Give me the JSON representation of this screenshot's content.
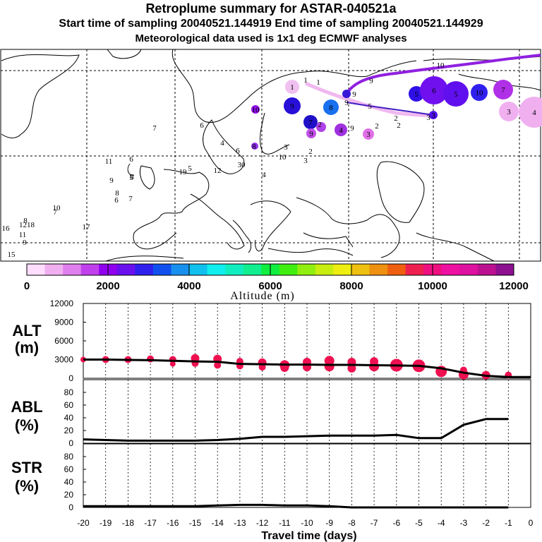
{
  "header": {
    "title": "Retroplume summary for ASTAR-040521a",
    "sampling": "Start time of sampling 20040521.144919     End time of sampling 20040521.144929",
    "met": "Meteorological data used is 1x1 deg ECMWF analyses"
  },
  "colorbar": {
    "label": "Altitude (m)",
    "ticks": [
      "0",
      "2000",
      "4000",
      "6000",
      "8000",
      "10000",
      "12000"
    ],
    "colors": [
      "#ffddff",
      "#f0b0f0",
      "#e080ee",
      "#c040ee",
      "#9000ee",
      "#6a10ee",
      "#3020ee",
      "#1050ee",
      "#1890ee",
      "#10c0ee",
      "#10eeee",
      "#10eec0",
      "#10ee90",
      "#10ee40",
      "#40ee10",
      "#90ee10",
      "#c8ee10",
      "#eeee10",
      "#eec010",
      "#ee9010",
      "#ee6010",
      "#ee2050",
      "#ee1080",
      "#ee10a0",
      "#dd10a0",
      "#bb1090",
      "#8c1090"
    ]
  },
  "map": {
    "labels": [
      {
        "t": "1",
        "x": 433,
        "y": 113
      },
      {
        "t": "1",
        "x": 451,
        "y": 116
      },
      {
        "t": "1",
        "x": 414,
        "y": 123
      },
      {
        "t": "9",
        "x": 526,
        "y": 114
      },
      {
        "t": "9",
        "x": 502,
        "y": 133
      },
      {
        "t": "9",
        "x": 491,
        "y": 145
      },
      {
        "t": "5",
        "x": 524,
        "y": 150
      },
      {
        "t": "2",
        "x": 561,
        "y": 167
      },
      {
        "t": "2",
        "x": 534,
        "y": 178
      },
      {
        "t": "2",
        "x": 565,
        "y": 177
      },
      {
        "t": "3",
        "x": 522,
        "y": 190
      },
      {
        "t": "3",
        "x": 607,
        "y": 166
      },
      {
        "t": "3",
        "x": 614,
        "y": 163
      },
      {
        "t": "9",
        "x": 414,
        "y": 150
      },
      {
        "t": "8",
        "x": 469,
        "y": 152
      },
      {
        "t": "10",
        "x": 362,
        "y": 155
      },
      {
        "t": "7",
        "x": 440,
        "y": 173
      },
      {
        "t": "2",
        "x": 453,
        "y": 176
      },
      {
        "t": "4",
        "x": 483,
        "y": 184
      },
      {
        "t": "9",
        "x": 441,
        "y": 189
      },
      {
        "t": "9",
        "x": 499,
        "y": 181
      },
      {
        "t": "7",
        "x": 219,
        "y": 181
      },
      {
        "t": "6",
        "x": 286,
        "y": 177
      },
      {
        "t": "4",
        "x": 315,
        "y": 202
      },
      {
        "t": "6",
        "x": 337,
        "y": 213
      },
      {
        "t": "8",
        "x": 360,
        "y": 207
      },
      {
        "t": "3",
        "x": 405,
        "y": 208
      },
      {
        "t": "2",
        "x": 440,
        "y": 214
      },
      {
        "t": "10",
        "x": 400,
        "y": 222
      },
      {
        "t": "3",
        "x": 433,
        "y": 227
      },
      {
        "t": "11",
        "x": 154,
        "y": 228
      },
      {
        "t": "6",
        "x": 186,
        "y": 225
      },
      {
        "t": "30",
        "x": 342,
        "y": 233
      },
      {
        "t": "8",
        "x": 187,
        "y": 250
      },
      {
        "t": "5",
        "x": 269,
        "y": 238
      },
      {
        "t": "19",
        "x": 259,
        "y": 243
      },
      {
        "t": "12",
        "x": 308,
        "y": 241
      },
      {
        "t": "4",
        "x": 374,
        "y": 247
      },
      {
        "t": "9",
        "x": 158,
        "y": 255
      },
      {
        "t": "5",
        "x": 186,
        "y": 251
      },
      {
        "t": "8",
        "x": 166,
        "y": 273
      },
      {
        "t": "6",
        "x": 165,
        "y": 283
      },
      {
        "t": "7",
        "x": 185,
        "y": 281
      },
      {
        "t": "10",
        "x": 80,
        "y": 294
      },
      {
        "t": "7",
        "x": 78,
        "y": 300
      },
      {
        "t": "8",
        "x": 36,
        "y": 312
      },
      {
        "t": "1218",
        "x": 38,
        "y": 318
      },
      {
        "t": "16",
        "x": 8,
        "y": 323
      },
      {
        "t": "17",
        "x": 122,
        "y": 321
      },
      {
        "t": "11",
        "x": 32,
        "y": 332
      },
      {
        "t": "9",
        "x": 35,
        "y": 343
      },
      {
        "t": "15",
        "x": 16,
        "y": 360
      },
      {
        "t": "10",
        "x": 624,
        "y": 92
      },
      {
        "t": "4",
        "x": 757,
        "y": 159
      },
      {
        "t": "3",
        "x": 721,
        "y": 158
      },
      {
        "t": "7",
        "x": 713,
        "y": 127
      },
      {
        "t": "10",
        "x": 679,
        "y": 131
      },
      {
        "t": "6",
        "x": 615,
        "y": 128
      },
      {
        "t": "5",
        "x": 646,
        "y": 133
      },
      {
        "t": "5",
        "x": 590,
        "y": 133
      }
    ],
    "blobs": [
      {
        "x": 414,
        "y": 123,
        "r": 10,
        "c": "#f0c0f0"
      },
      {
        "x": 491,
        "y": 133,
        "r": 6,
        "c": "#3818d8"
      },
      {
        "x": 414,
        "y": 150,
        "r": 12,
        "c": "#2810d8"
      },
      {
        "x": 469,
        "y": 152,
        "r": 11,
        "c": "#1870ee"
      },
      {
        "x": 362,
        "y": 155,
        "r": 6,
        "c": "#9010ee"
      },
      {
        "x": 440,
        "y": 173,
        "r": 10,
        "c": "#2010c8"
      },
      {
        "x": 483,
        "y": 184,
        "r": 9,
        "c": "#a030e0"
      },
      {
        "x": 441,
        "y": 189,
        "r": 7,
        "c": "#c050e8"
      },
      {
        "x": 522,
        "y": 190,
        "r": 8,
        "c": "#e070e8"
      },
      {
        "x": 455,
        "y": 180,
        "r": 7,
        "c": "#b040ea"
      },
      {
        "x": 361,
        "y": 207,
        "r": 5,
        "c": "#9030ee"
      },
      {
        "x": 590,
        "y": 133,
        "r": 11,
        "c": "#3010e8"
      },
      {
        "x": 615,
        "y": 128,
        "r": 20,
        "c": "#7010ee"
      },
      {
        "x": 646,
        "y": 133,
        "r": 18,
        "c": "#6010ee"
      },
      {
        "x": 679,
        "y": 131,
        "r": 12,
        "c": "#3020ee"
      },
      {
        "x": 713,
        "y": 127,
        "r": 14,
        "c": "#b030e8"
      },
      {
        "x": 721,
        "y": 158,
        "r": 14,
        "c": "#f0b0f0"
      },
      {
        "x": 757,
        "y": 159,
        "r": 22,
        "c": "#f0b0f0"
      },
      {
        "x": 614,
        "y": 163,
        "r": 6,
        "c": "#5010ee"
      }
    ]
  },
  "panels": {
    "alt": {
      "label1": "ALT",
      "label2": "(m)",
      "ticks": [
        "0",
        "3000",
        "6000",
        "9000",
        "12000"
      ]
    },
    "abl": {
      "label1": "ABL",
      "label2": "(%)",
      "ticks": [
        "0",
        "20",
        "40",
        "60",
        "80"
      ]
    },
    "str": {
      "label1": "STR",
      "label2": "(%)",
      "ticks": [
        "0",
        "20",
        "40",
        "60",
        "80"
      ]
    },
    "xlabel": "Travel time (days)"
  },
  "chart_data": [
    {
      "type": "line",
      "title": "ALT",
      "ylabel": "ALT (m)",
      "xlabel": "Travel time (days)",
      "ylim": [
        0,
        12000
      ],
      "xlim": [
        -20,
        0
      ],
      "xticks": [
        -20,
        -19,
        -18,
        -17,
        -16,
        -15,
        -14,
        -13,
        -12,
        -11,
        -10,
        -9,
        -8,
        -7,
        -6,
        -5,
        -4,
        -3,
        -2,
        -1,
        0
      ],
      "line": {
        "x": [
          -20,
          -19,
          -18,
          -17,
          -16,
          -15,
          -14,
          -13,
          -12,
          -11,
          -10,
          -9,
          -8,
          -7,
          -6,
          -5,
          -4,
          -3,
          -2,
          -1,
          0
        ],
        "y": [
          3000,
          3000,
          2950,
          2900,
          2800,
          2700,
          2650,
          2300,
          2250,
          2200,
          2200,
          2150,
          2150,
          2100,
          2050,
          2000,
          1600,
          900,
          400,
          200,
          200
        ]
      },
      "points": [
        {
          "x": -20,
          "y": 3000,
          "s": 4
        },
        {
          "x": -19,
          "y": 3000,
          "s": 5
        },
        {
          "x": -18,
          "y": 3000,
          "s": 5
        },
        {
          "x": -17,
          "y": 3100,
          "s": 5
        },
        {
          "x": -16,
          "y": 3000,
          "s": 5
        },
        {
          "x": -16,
          "y": 2300,
          "s": 4
        },
        {
          "x": -15,
          "y": 3200,
          "s": 6
        },
        {
          "x": -15,
          "y": 2400,
          "s": 5
        },
        {
          "x": -14,
          "y": 3100,
          "s": 6
        },
        {
          "x": -14,
          "y": 2100,
          "s": 5
        },
        {
          "x": -13,
          "y": 2700,
          "s": 5
        },
        {
          "x": -13,
          "y": 2000,
          "s": 5
        },
        {
          "x": -12,
          "y": 2500,
          "s": 6
        },
        {
          "x": -12,
          "y": 1800,
          "s": 5
        },
        {
          "x": -11,
          "y": 2100,
          "s": 7
        },
        {
          "x": -11,
          "y": 1700,
          "s": 6
        },
        {
          "x": -10,
          "y": 2600,
          "s": 6
        },
        {
          "x": -10,
          "y": 1800,
          "s": 6
        },
        {
          "x": -9,
          "y": 2800,
          "s": 7
        },
        {
          "x": -9,
          "y": 1900,
          "s": 7
        },
        {
          "x": -8,
          "y": 2600,
          "s": 6
        },
        {
          "x": -8,
          "y": 1600,
          "s": 6
        },
        {
          "x": -7,
          "y": 2700,
          "s": 6
        },
        {
          "x": -7,
          "y": 1900,
          "s": 7
        },
        {
          "x": -6,
          "y": 2100,
          "s": 9
        },
        {
          "x": -5,
          "y": 2000,
          "s": 9
        },
        {
          "x": -4,
          "y": 1100,
          "s": 8
        },
        {
          "x": -3,
          "y": 600,
          "s": 7
        },
        {
          "x": -3,
          "y": 1300,
          "s": 5
        },
        {
          "x": -2,
          "y": 500,
          "s": 6
        },
        {
          "x": -1,
          "y": 500,
          "s": 5
        }
      ]
    },
    {
      "type": "line",
      "title": "ABL",
      "ylabel": "ABL (%)",
      "ylim": [
        0,
        100
      ],
      "xlim": [
        -20,
        0
      ],
      "x": [
        -20,
        -19,
        -18,
        -17,
        -16,
        -15,
        -14,
        -13,
        -12,
        -11,
        -10,
        -9,
        -8,
        -7,
        -6,
        -5,
        -4,
        -3,
        -2,
        -1
      ],
      "values": [
        6,
        5,
        4,
        4,
        4,
        4,
        5,
        7,
        10,
        10,
        11,
        12,
        12,
        12,
        13,
        8,
        8,
        29,
        38,
        38
      ]
    },
    {
      "type": "line",
      "title": "STR",
      "ylabel": "STR (%)",
      "ylim": [
        0,
        100
      ],
      "xlim": [
        -20,
        0
      ],
      "x": [
        -20,
        -19,
        -18,
        -17,
        -16,
        -15,
        -14,
        -13,
        -12,
        -11,
        -10,
        -9,
        -8,
        -7,
        -6,
        -5,
        -4,
        -3,
        -2,
        -1
      ],
      "values": [
        2,
        2,
        2,
        2,
        2,
        2,
        3,
        4,
        4,
        3,
        3,
        2,
        0,
        0,
        0,
        0,
        0,
        0,
        0,
        0
      ]
    }
  ]
}
